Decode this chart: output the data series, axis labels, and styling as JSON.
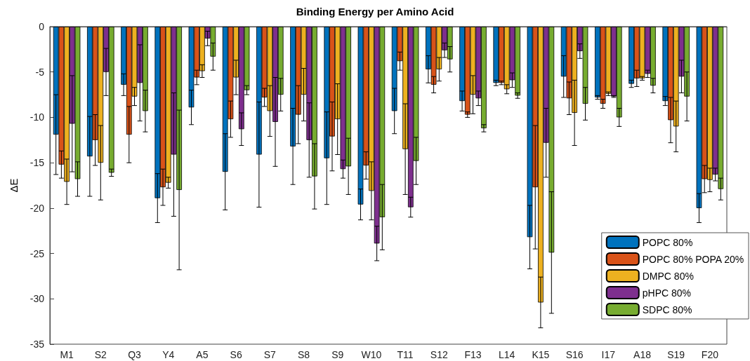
{
  "chart_data": {
    "type": "bar",
    "title": "Binding Energy per Amino Acid",
    "ylabel": "ΔE",
    "categories": [
      "M1",
      "S2",
      "Q3",
      "Y4",
      "A5",
      "S6",
      "S7",
      "S8",
      "S9",
      "W10",
      "T11",
      "S12",
      "F13",
      "L14",
      "K15",
      "S16",
      "I17",
      "A18",
      "S19",
      "F20"
    ],
    "series": [
      {
        "name": "POPC 80%",
        "color": "#0072bd",
        "values": [
          -11.9,
          -14.3,
          -6.4,
          -18.9,
          -8.9,
          -16.0,
          -14.1,
          -13.2,
          -14.5,
          -19.6,
          -9.3,
          -4.7,
          -8.2,
          -6.2,
          -23.2,
          -5.5,
          -7.8,
          -6.3,
          -8.2,
          -20.0
        ],
        "errors": [
          4.4,
          4.4,
          1.2,
          2.7,
          1.9,
          4.2,
          5.8,
          4.2,
          5.1,
          1.7,
          2.5,
          1.5,
          1.1,
          0.3,
          3.5,
          2.3,
          0.2,
          0.4,
          0.5,
          1.6
        ]
      },
      {
        "name": "POPC 80% POPA 20%",
        "color": "#d95319",
        "values": [
          -15.2,
          -12.5,
          -11.9,
          -17.7,
          -5.6,
          -10.2,
          -7.8,
          -9.7,
          -12.1,
          -15.3,
          -3.8,
          -6.4,
          -9.7,
          -6.2,
          -17.7,
          -7.9,
          -8.5,
          -5.7,
          -10.3,
          -16.8
        ],
        "errors": [
          1.5,
          2.8,
          3.1,
          2.0,
          0.8,
          2.0,
          1.0,
          3.2,
          3.8,
          1.5,
          1.0,
          0.9,
          0.3,
          0.2,
          6.8,
          1.8,
          0.5,
          0.9,
          2.5,
          1.5
        ]
      },
      {
        "name": "DMPC 80%",
        "color": "#edb120",
        "values": [
          -17.1,
          -15.0,
          -7.7,
          -17.2,
          -4.9,
          -5.6,
          -9.3,
          -7.5,
          -10.2,
          -18.1,
          -13.5,
          -4.7,
          -7.5,
          -6.9,
          -30.4,
          -9.5,
          -7.4,
          -5.7,
          -11.0,
          -16.9
        ],
        "errors": [
          2.5,
          4.1,
          1.0,
          0.6,
          0.7,
          1.9,
          2.8,
          2.9,
          3.9,
          3.2,
          5.0,
          1.3,
          2.1,
          0.5,
          2.8,
          3.6,
          0.2,
          0.2,
          2.8,
          1.3
        ]
      },
      {
        "name": "pHPC 80%",
        "color": "#7e2f8e",
        "values": [
          -10.7,
          -5.0,
          -6.2,
          -14.1,
          -1.3,
          -11.3,
          -10.5,
          -12.5,
          -15.7,
          -23.9,
          -19.9,
          -2.6,
          -7.9,
          -5.9,
          -12.8,
          -2.7,
          -7.7,
          -5.2,
          -5.5,
          -16.3
        ],
        "errors": [
          5.3,
          2.6,
          4.2,
          6.8,
          0.8,
          1.8,
          4.9,
          4.1,
          1.0,
          1.9,
          1.1,
          0.8,
          0.8,
          0.8,
          3.8,
          0.8,
          0.1,
          0.4,
          1.8,
          0.7
        ]
      },
      {
        "name": "SDPC 80%",
        "color": "#77ac30",
        "values": [
          -16.8,
          -16.1,
          -9.3,
          -18.0,
          -3.3,
          -7.0,
          -7.5,
          -16.5,
          -15.4,
          -21.0,
          -14.8,
          -3.6,
          -11.2,
          -7.6,
          -24.9,
          -8.5,
          -10.0,
          -6.5,
          -7.7,
          -17.9
        ],
        "errors": [
          1.9,
          0.4,
          2.3,
          8.8,
          1.5,
          0.5,
          1.8,
          3.6,
          3.1,
          3.6,
          2.6,
          1.4,
          0.4,
          0.3,
          6.7,
          1.8,
          1.0,
          0.8,
          2.7,
          1.2
        ]
      }
    ],
    "ylim": [
      -35,
      0
    ],
    "yticks": [
      -35,
      -30,
      -25,
      -20,
      -15,
      -10,
      -5,
      0
    ],
    "grid": false,
    "legend": "bottom right"
  }
}
